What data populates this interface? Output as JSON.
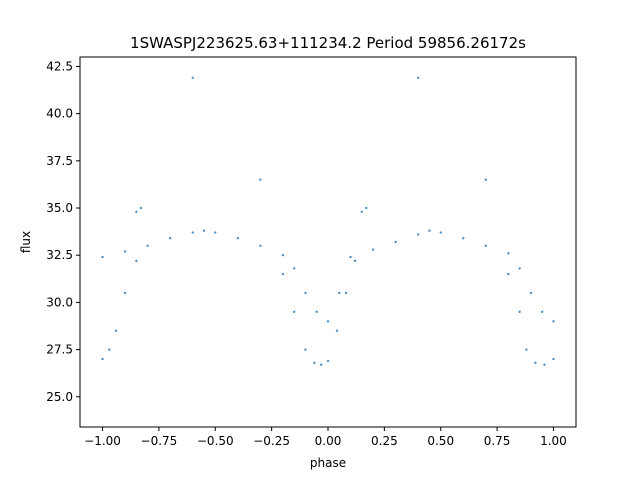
{
  "chart_data": {
    "type": "scatter",
    "title": "1SWASPJ223625.63+111234.2 Period 59856.26172s",
    "xlabel": "phase",
    "ylabel": "flux",
    "xlim": [
      -1.1,
      1.1
    ],
    "ylim": [
      23.4,
      43.0
    ],
    "xticks": [
      -1.0,
      -0.75,
      -0.5,
      -0.25,
      0.0,
      0.25,
      0.5,
      0.75,
      1.0
    ],
    "xtick_labels": [
      "−1.00",
      "−0.75",
      "−0.50",
      "−0.25",
      "0.00",
      "0.25",
      "0.50",
      "0.75",
      "1.00"
    ],
    "yticks": [
      25.0,
      27.5,
      30.0,
      32.5,
      35.0,
      37.5,
      40.0,
      42.5
    ],
    "ytick_labels": [
      "25.0",
      "27.5",
      "30.0",
      "32.5",
      "35.0",
      "37.5",
      "40.0",
      "42.5"
    ],
    "grid": false,
    "marker_color": "#4f8ec3",
    "series": [
      {
        "x": [
          -1.0,
          -0.9,
          -0.8,
          -0.7,
          -0.6,
          -0.55,
          -0.5,
          -0.4,
          -0.3,
          -0.2,
          -0.15,
          -0.1,
          -0.05,
          0.0,
          0.05,
          0.1,
          0.2,
          0.3,
          0.4,
          0.45,
          0.5,
          0.6,
          0.7,
          0.8,
          0.85,
          0.9,
          0.95,
          1.0
        ],
        "y": [
          32.4,
          32.7,
          33.0,
          33.4,
          33.7,
          33.8,
          33.7,
          33.4,
          33.0,
          32.5,
          31.8,
          30.5,
          29.5,
          29.0,
          30.5,
          32.4,
          32.8,
          33.2,
          33.6,
          33.8,
          33.7,
          33.4,
          33.0,
          32.6,
          31.8,
          30.5,
          29.5,
          29.0
        ]
      },
      {
        "x": [
          -1.0,
          -0.97,
          -0.94,
          -0.9,
          -0.85,
          -0.2,
          -0.15,
          -0.1,
          -0.06,
          -0.03,
          0.0,
          0.04,
          0.08,
          0.12,
          0.8,
          0.85,
          0.88,
          0.92,
          0.96,
          1.0
        ],
        "y": [
          27.0,
          27.5,
          28.5,
          30.5,
          32.2,
          31.5,
          29.5,
          27.5,
          26.8,
          26.7,
          26.9,
          28.5,
          30.5,
          32.2,
          31.5,
          29.5,
          27.5,
          26.8,
          26.7,
          27.0
        ]
      },
      {
        "x": [
          -0.85,
          -0.83,
          0.15,
          0.17,
          -0.6,
          0.4,
          -0.3,
          0.7
        ],
        "y": [
          34.8,
          35.0,
          34.8,
          35.0,
          41.9,
          41.9,
          36.5,
          36.5
        ]
      }
    ]
  }
}
